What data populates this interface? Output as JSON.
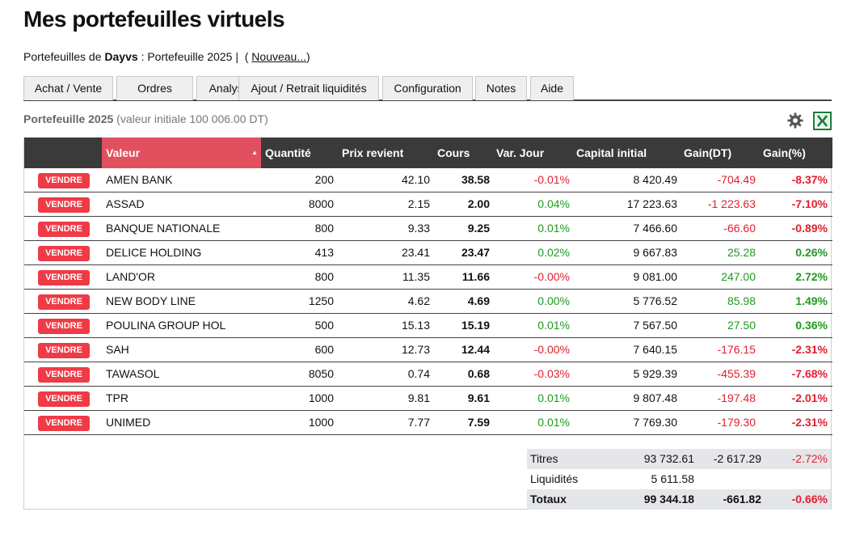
{
  "page": {
    "title": "Mes portefeuilles virtuels"
  },
  "breadcrumb": {
    "prefix": "Portefeuilles de",
    "user": "Dayvs",
    "separator": ":",
    "portfolio": "Portefeuille 2025",
    "pipe": "|",
    "new_open": "(",
    "new_link": "Nouveau...",
    "new_close": ")"
  },
  "tabs": [
    {
      "label": "Achat / Vente"
    },
    {
      "label": "Ordres"
    },
    {
      "label": "Analyse"
    },
    {
      "label": "Ajout / Retrait liquidités"
    },
    {
      "label": "Configuration"
    },
    {
      "label": "Notes"
    },
    {
      "label": "Aide"
    }
  ],
  "portfolio_header": {
    "name": "Portefeuille 2025",
    "initial_value": "(valeur initiale 100 006.00 DT)",
    "settings_icon": "gear-icon",
    "export_icon": "excel-icon"
  },
  "table": {
    "columns": {
      "action": "",
      "valeur": "Valeur",
      "quantite": "Quantité",
      "prix_revient": "Prix revient",
      "cours": "Cours",
      "var_jour": "Var. Jour",
      "capital_initial": "Capital initial",
      "gain_dt": "Gain(DT)",
      "gain_pct": "Gain(%)"
    },
    "sorted_column": "valeur",
    "sell_label": "VENDRE",
    "rows": [
      {
        "valeur": "AMEN BANK",
        "quantite": "200",
        "prix_revient": "42.10",
        "cours": "38.58",
        "var_jour": "-0.01%",
        "capital_initial": "8 420.49",
        "gain_dt": "-704.49",
        "gain_pct": "-8.37%"
      },
      {
        "valeur": "ASSAD",
        "quantite": "8000",
        "prix_revient": "2.15",
        "cours": "2.00",
        "var_jour": "0.04%",
        "capital_initial": "17 223.63",
        "gain_dt": "-1 223.63",
        "gain_pct": "-7.10%"
      },
      {
        "valeur": "BANQUE NATIONALE",
        "quantite": "800",
        "prix_revient": "9.33",
        "cours": "9.25",
        "var_jour": "0.01%",
        "capital_initial": "7 466.60",
        "gain_dt": "-66.60",
        "gain_pct": "-0.89%"
      },
      {
        "valeur": "DELICE HOLDING",
        "quantite": "413",
        "prix_revient": "23.41",
        "cours": "23.47",
        "var_jour": "0.02%",
        "capital_initial": "9 667.83",
        "gain_dt": "25.28",
        "gain_pct": "0.26%"
      },
      {
        "valeur": "LAND'OR",
        "quantite": "800",
        "prix_revient": "11.35",
        "cours": "11.66",
        "var_jour": "-0.00%",
        "capital_initial": "9 081.00",
        "gain_dt": "247.00",
        "gain_pct": "2.72%"
      },
      {
        "valeur": "NEW BODY LINE",
        "quantite": "1250",
        "prix_revient": "4.62",
        "cours": "4.69",
        "var_jour": "0.00%",
        "capital_initial": "5 776.52",
        "gain_dt": "85.98",
        "gain_pct": "1.49%"
      },
      {
        "valeur": "POULINA GROUP HOL",
        "quantite": "500",
        "prix_revient": "15.13",
        "cours": "15.19",
        "var_jour": "0.01%",
        "capital_initial": "7 567.50",
        "gain_dt": "27.50",
        "gain_pct": "0.36%"
      },
      {
        "valeur": "SAH",
        "quantite": "600",
        "prix_revient": "12.73",
        "cours": "12.44",
        "var_jour": "-0.00%",
        "capital_initial": "7 640.15",
        "gain_dt": "-176.15",
        "gain_pct": "-2.31%"
      },
      {
        "valeur": "TAWASOL",
        "quantite": "8050",
        "prix_revient": "0.74",
        "cours": "0.68",
        "var_jour": "-0.03%",
        "capital_initial": "5 929.39",
        "gain_dt": "-455.39",
        "gain_pct": "-7.68%"
      },
      {
        "valeur": "TPR",
        "quantite": "1000",
        "prix_revient": "9.81",
        "cours": "9.61",
        "var_jour": "0.01%",
        "capital_initial": "9 807.48",
        "gain_dt": "-197.48",
        "gain_pct": "-2.01%"
      },
      {
        "valeur": "UNIMED",
        "quantite": "1000",
        "prix_revient": "7.77",
        "cours": "7.59",
        "var_jour": "0.01%",
        "capital_initial": "7 769.30",
        "gain_dt": "-179.30",
        "gain_pct": "-2.31%"
      }
    ]
  },
  "summary": {
    "titres": {
      "label": "Titres",
      "capital": "93 732.61",
      "gain_dt": "-2 617.29",
      "gain_pct": "-2.72%"
    },
    "liquidites": {
      "label": "Liquidités",
      "capital": "5 611.58",
      "gain_dt": "",
      "gain_pct": ""
    },
    "totaux": {
      "label": "Totaux",
      "capital": "99 344.18",
      "gain_dt": "-661.82",
      "gain_pct": "-0.66%"
    }
  },
  "colors": {
    "negative": "#e02030",
    "positive": "#1f9a1f",
    "sell_button": "#ef3b46",
    "header_bg": "#3a3a3a",
    "sorted_header": "#e0505f"
  }
}
